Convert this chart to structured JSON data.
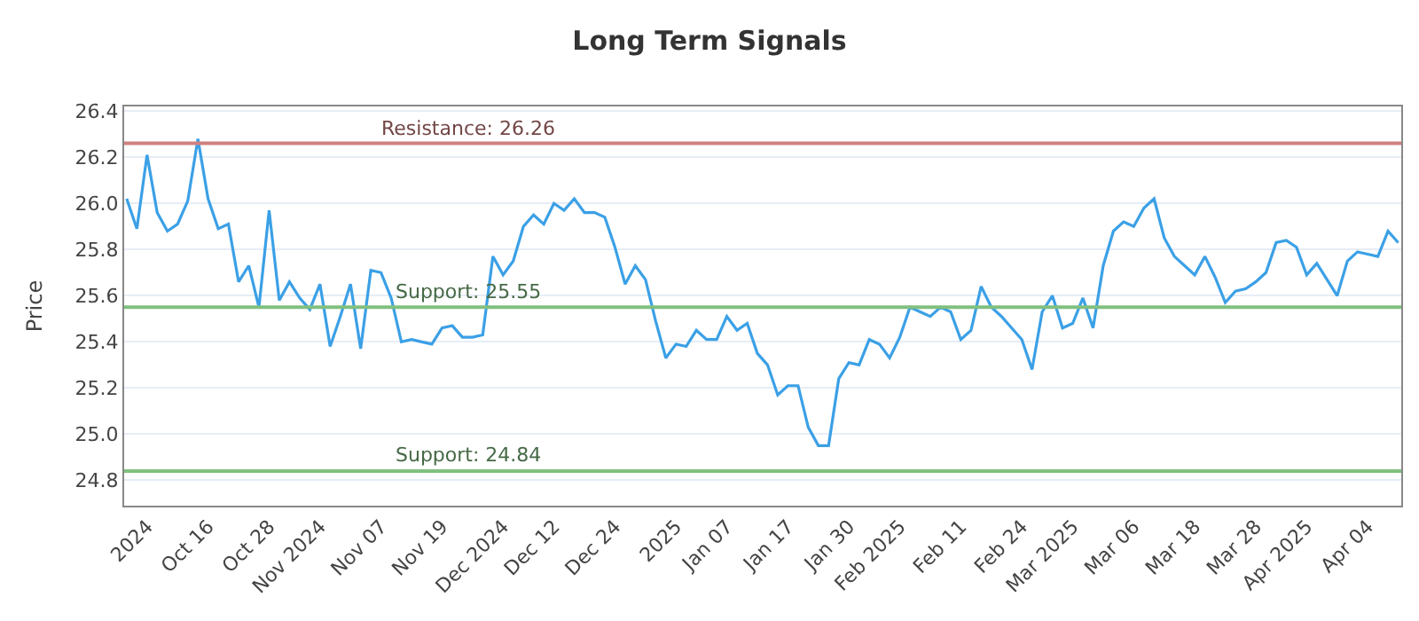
{
  "chart_data": {
    "type": "line",
    "title": "Long Term Signals",
    "ylabel": "Price",
    "categories": [
      null,
      null,
      "2024",
      null,
      null,
      null,
      null,
      null,
      "Oct 16",
      null,
      null,
      null,
      null,
      null,
      "Oct 28",
      null,
      null,
      null,
      null,
      "Nov 2024",
      null,
      null,
      null,
      null,
      null,
      "Nov 07",
      null,
      null,
      null,
      null,
      null,
      "Nov 19",
      null,
      null,
      null,
      null,
      null,
      "Dec 2024",
      null,
      null,
      null,
      null,
      "Dec 12",
      null,
      null,
      null,
      null,
      null,
      "Dec 24",
      null,
      null,
      null,
      null,
      null,
      "2025",
      null,
      null,
      null,
      null,
      "Jan 07",
      null,
      null,
      null,
      null,
      null,
      "Jan 17",
      null,
      null,
      null,
      null,
      null,
      "Jan 30",
      null,
      null,
      null,
      null,
      "Feb 2025",
      null,
      null,
      null,
      null,
      null,
      "Feb 11",
      null,
      null,
      null,
      null,
      null,
      "Feb 24",
      null,
      null,
      null,
      null,
      "Mar 2025",
      null,
      null,
      null,
      null,
      null,
      "Mar 06",
      null,
      null,
      null,
      null,
      null,
      "Mar 18",
      null,
      null,
      null,
      null,
      null,
      "Mar 28",
      null,
      null,
      null,
      null,
      "Apr 2025",
      null,
      null,
      null,
      null,
      null,
      "Apr 04",
      null,
      null,
      null
    ],
    "series": [
      {
        "color": "#3ba0e6",
        "values": [
          26.02,
          25.89,
          26.21,
          25.96,
          25.88,
          25.91,
          26.01,
          26.28,
          26.02,
          25.89,
          25.91,
          25.66,
          25.73,
          25.55,
          25.97,
          25.58,
          25.66,
          25.59,
          25.54,
          25.65,
          25.38,
          25.51,
          25.65,
          25.37,
          25.71,
          25.7,
          25.59,
          25.4,
          25.41,
          25.4,
          25.39,
          25.46,
          25.47,
          25.42,
          25.42,
          25.43,
          25.77,
          25.69,
          25.75,
          25.9,
          25.95,
          25.91,
          26.0,
          25.97,
          26.02,
          25.96,
          25.96,
          25.94,
          25.81,
          25.65,
          25.73,
          25.67,
          25.49,
          25.33,
          25.39,
          25.38,
          25.45,
          25.41,
          25.41,
          25.51,
          25.45,
          25.48,
          25.35,
          25.3,
          25.17,
          25.21,
          25.21,
          25.03,
          24.95,
          24.95,
          25.24,
          25.31,
          25.3,
          25.41,
          25.39,
          25.33,
          25.42,
          25.55,
          25.53,
          25.51,
          25.55,
          25.53,
          25.41,
          25.45,
          25.64,
          25.55,
          25.51,
          25.46,
          25.41,
          25.28,
          25.53,
          25.6,
          25.46,
          25.48,
          25.59,
          25.46,
          25.73,
          25.88,
          25.92,
          25.9,
          25.98,
          26.02,
          25.85,
          25.77,
          25.73,
          25.69,
          25.77,
          25.68,
          25.57,
          25.62,
          25.63,
          25.66,
          25.7,
          25.83,
          25.84,
          25.81,
          25.69,
          25.74,
          25.67,
          25.6,
          25.75,
          25.79,
          25.78,
          25.77,
          25.88,
          25.83
        ]
      }
    ],
    "ylim": [
      24.69,
      26.42
    ],
    "yticks": [
      24.8,
      {
        "value": 25,
        "label": "25.0"
      },
      25.2,
      25.4,
      25.6,
      25.8,
      {
        "value": 26,
        "label": "26.0"
      },
      26.2,
      26.4
    ],
    "ref_lines": [
      {
        "axis": "y",
        "value": 26.26,
        "label": "Resistance: 26.26",
        "color": "#d08080"
      },
      {
        "axis": "y",
        "value": 25.55,
        "label": "Support: 25.55",
        "color": "#80c080"
      },
      {
        "axis": "y",
        "value": 24.84,
        "label": "Support: 24.84",
        "color": "#80c080"
      }
    ],
    "grid": "y",
    "marker": "none",
    "line_style": "solid"
  }
}
